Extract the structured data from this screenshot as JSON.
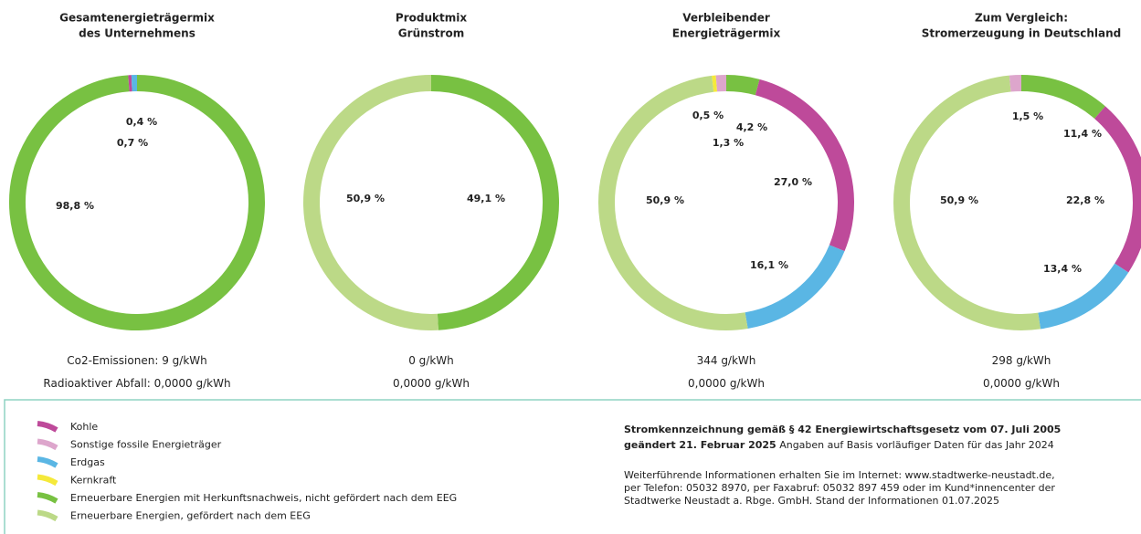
{
  "chart_data": [
    {
      "type": "pie",
      "title_lines": [
        "Gesamtenergieträgermix",
        "des Unternehmens"
      ],
      "values": [
        98.8,
        0.4,
        0.7
      ],
      "value_labels": [
        "98,8 %",
        "0,4 %",
        "0,7 %"
      ],
      "colors": [
        "#78c142",
        "#be4a9a",
        "#5ab6e4"
      ],
      "co2_label": "Co2-Emissionen:",
      "co2": "9 g/kWh",
      "waste_label": "Radioaktiver Abfall:",
      "waste": "0,0000 g/kWh"
    },
    {
      "type": "pie",
      "title_lines": [
        "Produktmix",
        "Grünstrom"
      ],
      "values": [
        49.1,
        50.9
      ],
      "value_labels": [
        "49,1 %",
        "50,9 %"
      ],
      "colors": [
        "#78c142",
        "#bcd987"
      ],
      "co2": "0 g/kWh",
      "waste": "0,0000 g/kWh"
    },
    {
      "type": "pie",
      "title_lines": [
        "Verbleibender",
        "Energieträgermix"
      ],
      "values": [
        4.2,
        27.0,
        16.1,
        50.9,
        0.5,
        1.3
      ],
      "value_labels": [
        "4,2 %",
        "27,0 %",
        "16,1 %",
        "50,9 %",
        "0,5 %",
        "1,3 %"
      ],
      "colors": [
        "#78c142",
        "#be4a9a",
        "#5ab6e4",
        "#bcd987",
        "#f5e93a",
        "#dda6cc"
      ],
      "co2": "344 g/kWh",
      "waste": "0,0000 g/kWh"
    },
    {
      "type": "pie",
      "title_lines": [
        "Zum Vergleich:",
        "Stromerzeugung in Deutschland"
      ],
      "values": [
        11.4,
        22.8,
        13.4,
        50.9,
        1.5
      ],
      "value_labels": [
        "11,4 %",
        "22,8 %",
        "13,4 %",
        "50,9 %",
        "1,5 %"
      ],
      "colors": [
        "#78c142",
        "#be4a9a",
        "#5ab6e4",
        "#bcd987",
        "#dda6cc"
      ],
      "co2": "298 g/kWh",
      "waste": "0,0000 g/kWh"
    }
  ],
  "legend": [
    {
      "name": "Kohle",
      "color": "#be4a9a"
    },
    {
      "name": "Sonstige fossile Energieträger",
      "color": "#dda6cc"
    },
    {
      "name": "Erdgas",
      "color": "#5ab6e4"
    },
    {
      "name": "Kernkraft",
      "color": "#f5e93a"
    },
    {
      "name": "Erneuerbare Energien mit Herkunftsnachweis, nicht gefördert nach dem EEG",
      "color": "#78c142"
    },
    {
      "name": "Erneuerbare Energien, gefördert nach dem EEG",
      "color": "#bcd987"
    }
  ],
  "info": {
    "heading": "Stromkennzeichnung gemäß § 42 Energiewirtschaftsgesetz vom 07. Juli 2005",
    "heading2": "geändert 21. Februar 2025",
    "heading2_rest": "Angaben auf Basis vorläufiger Daten für das Jahr 2024",
    "lines": [
      "Weiterführende Informationen erhalten Sie im Internet: www.stadtwerke-neustadt.de,",
      "per Telefon: 05032 8970, per Faxabruf: 05032 897 459 oder im Kund*innencenter der",
      "Stadtwerke Neustadt a. Rbge. GmbH. Stand der Informationen 01.07.2025"
    ]
  }
}
